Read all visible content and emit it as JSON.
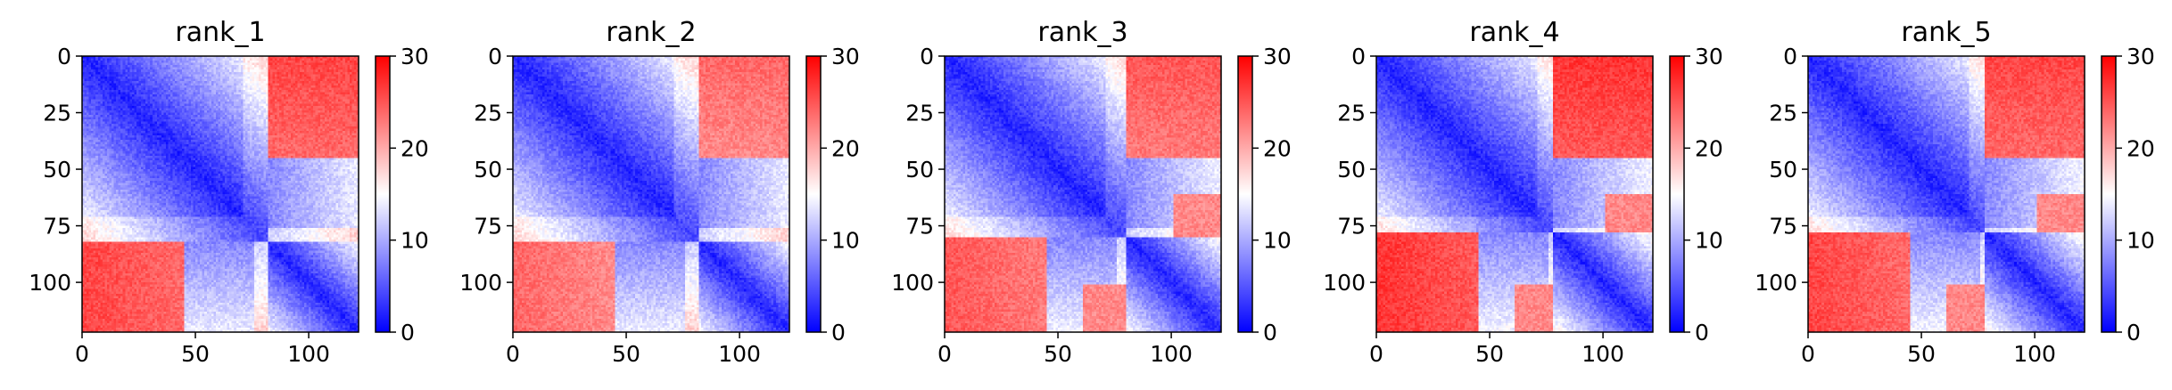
{
  "figure": {
    "colormap": {
      "low": "#0000ff",
      "mid": "#ffffff",
      "high": "#ff0000"
    },
    "frame_color": "#000000"
  },
  "chart_data": [
    {
      "type": "heatmap",
      "title": "rank_1",
      "xticks": [
        0,
        50,
        100
      ],
      "yticks": [
        0,
        25,
        50,
        75,
        100
      ],
      "xlim": [
        0,
        122
      ],
      "ylim": [
        122,
        0
      ],
      "colorbar": {
        "range": [
          0,
          30
        ],
        "ticks": [
          0,
          10,
          20,
          30
        ]
      },
      "matrix_size": 122,
      "domain_boundary": 82,
      "cross_domain_value": 26
    },
    {
      "type": "heatmap",
      "title": "rank_2",
      "xticks": [
        0,
        50,
        100
      ],
      "yticks": [
        0,
        25,
        50,
        75,
        100
      ],
      "xlim": [
        0,
        122
      ],
      "ylim": [
        122,
        0
      ],
      "colorbar": {
        "range": [
          0,
          30
        ],
        "ticks": [
          0,
          10,
          20,
          30
        ]
      },
      "matrix_size": 122,
      "domain_boundary": 82,
      "cross_domain_value": 24
    },
    {
      "type": "heatmap",
      "title": "rank_3",
      "xticks": [
        0,
        50,
        100
      ],
      "yticks": [
        0,
        25,
        50,
        75,
        100
      ],
      "xlim": [
        0,
        122
      ],
      "ylim": [
        122,
        0
      ],
      "colorbar": {
        "range": [
          0,
          30
        ],
        "ticks": [
          0,
          10,
          20,
          30
        ]
      },
      "matrix_size": 122,
      "domain_boundary": 80,
      "cross_domain_value": 25
    },
    {
      "type": "heatmap",
      "title": "rank_4",
      "xticks": [
        0,
        50,
        100
      ],
      "yticks": [
        0,
        25,
        50,
        75,
        100
      ],
      "xlim": [
        0,
        122
      ],
      "ylim": [
        122,
        0
      ],
      "colorbar": {
        "range": [
          0,
          30
        ],
        "ticks": [
          0,
          10,
          20,
          30
        ]
      },
      "matrix_size": 122,
      "domain_boundary": 78,
      "cross_domain_value": 27
    },
    {
      "type": "heatmap",
      "title": "rank_5",
      "xticks": [
        0,
        50,
        100
      ],
      "yticks": [
        0,
        25,
        50,
        75,
        100
      ],
      "xlim": [
        0,
        122
      ],
      "ylim": [
        122,
        0
      ],
      "colorbar": {
        "range": [
          0,
          30
        ],
        "ticks": [
          0,
          10,
          20,
          30
        ]
      },
      "matrix_size": 122,
      "domain_boundary": 78,
      "cross_domain_value": 26
    }
  ]
}
